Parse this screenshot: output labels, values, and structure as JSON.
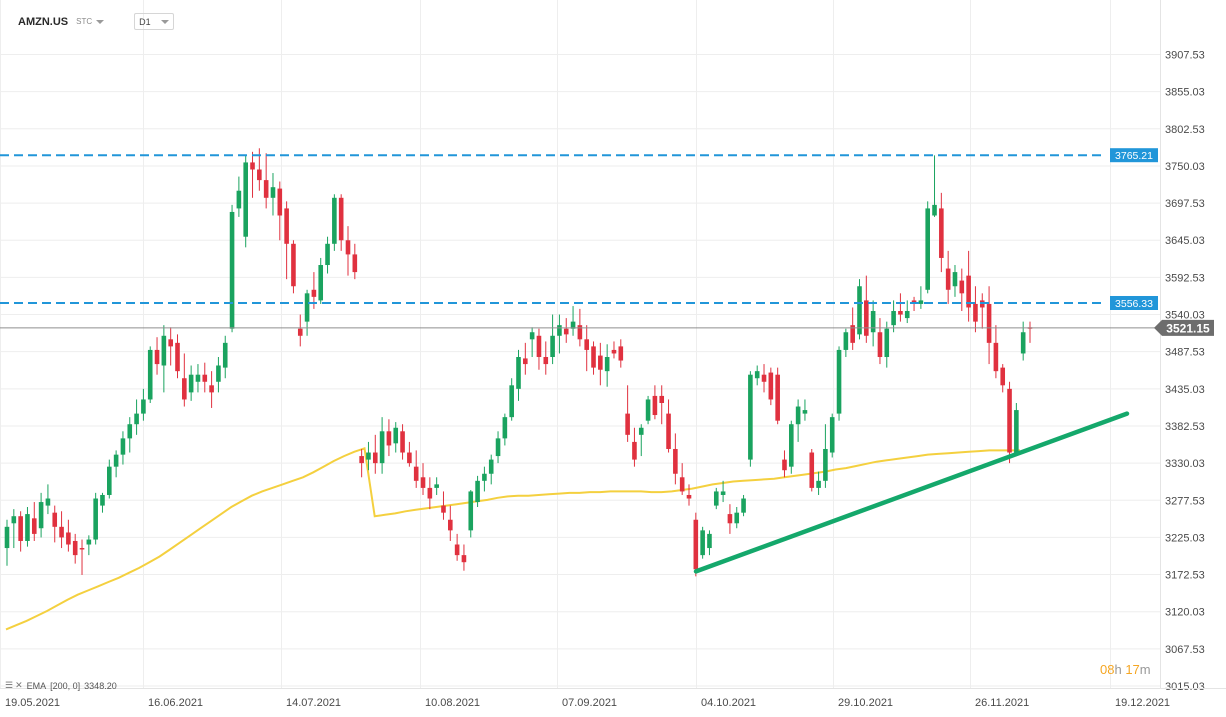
{
  "header": {
    "symbol": "AMZN.US",
    "tick_type": "STC",
    "timeframe": "D1"
  },
  "indicator": {
    "label": "EMA",
    "params": "[200, 0]",
    "value": "3348.20"
  },
  "timer": {
    "hours": "08",
    "h_unit": "h",
    "minutes": "17",
    "m_unit": "m"
  },
  "colors": {
    "up": "#1aa35f",
    "down": "#e0313f",
    "ema": "#f4d03f",
    "level": "#2196d9",
    "trend": "#14a86b",
    "current": "#6d6d6d"
  },
  "chart_data": {
    "type": "candlestick",
    "symbol": "AMZN.US",
    "timeframe": "D1",
    "ylim": [
      3015.03,
      3960.53
    ],
    "y_ticks": [
      "3907.53",
      "3855.03",
      "3802.53",
      "3750.03",
      "3697.53",
      "3645.03",
      "3592.53",
      "3540.03",
      "3487.53",
      "3435.03",
      "3382.53",
      "3330.03",
      "3277.53",
      "3225.03",
      "3172.53",
      "3120.03",
      "3067.53",
      "3015.03"
    ],
    "x_ticks": [
      "19.05.2021",
      "16.06.2021",
      "14.07.2021",
      "10.08.2021",
      "07.09.2021",
      "04.10.2021",
      "29.10.2021",
      "26.11.2021",
      "19.12.2021"
    ],
    "levels": [
      {
        "value": 3765.21,
        "label": "3765.21"
      },
      {
        "value": 3556.33,
        "label": "3556.33"
      }
    ],
    "current_price": {
      "value": 3521.15,
      "label": "3521.15"
    },
    "trendline": {
      "start": {
        "date": "2021-09-30",
        "price": 3177
      },
      "end": {
        "date": "2021-12-17",
        "price": 3400
      }
    },
    "candles": [
      [
        3210,
        3250,
        3185,
        3240
      ],
      [
        3245,
        3265,
        3210,
        3255
      ],
      [
        3255,
        3262,
        3205,
        3220
      ],
      [
        3220,
        3268,
        3212,
        3258
      ],
      [
        3252,
        3275,
        3220,
        3230
      ],
      [
        3238,
        3288,
        3225,
        3275
      ],
      [
        3270,
        3300,
        3258,
        3280
      ],
      [
        3260,
        3270,
        3218,
        3240
      ],
      [
        3240,
        3262,
        3210,
        3225
      ],
      [
        3232,
        3250,
        3205,
        3215
      ],
      [
        3220,
        3230,
        3188,
        3200
      ],
      [
        3210,
        3222,
        3172,
        3208
      ],
      [
        3215,
        3228,
        3200,
        3222
      ],
      [
        3222,
        3288,
        3215,
        3280
      ],
      [
        3270,
        3288,
        3260,
        3285
      ],
      [
        3285,
        3335,
        3280,
        3325
      ],
      [
        3325,
        3348,
        3310,
        3342
      ],
      [
        3342,
        3375,
        3328,
        3365
      ],
      [
        3365,
        3395,
        3345,
        3385
      ],
      [
        3385,
        3420,
        3370,
        3400
      ],
      [
        3400,
        3435,
        3390,
        3420
      ],
      [
        3420,
        3495,
        3415,
        3490
      ],
      [
        3490,
        3508,
        3455,
        3470
      ],
      [
        3468,
        3525,
        3430,
        3510
      ],
      [
        3505,
        3522,
        3468,
        3495
      ],
      [
        3500,
        3512,
        3450,
        3460
      ],
      [
        3450,
        3485,
        3410,
        3420
      ],
      [
        3430,
        3468,
        3418,
        3455
      ],
      [
        3445,
        3470,
        3430,
        3455
      ],
      [
        3455,
        3472,
        3430,
        3445
      ],
      [
        3440,
        3460,
        3408,
        3430
      ],
      [
        3445,
        3480,
        3430,
        3468
      ],
      [
        3465,
        3510,
        3450,
        3500
      ],
      [
        3520,
        3695,
        3515,
        3685
      ],
      [
        3690,
        3735,
        3678,
        3715
      ],
      [
        3650,
        3765,
        3635,
        3755
      ],
      [
        3755,
        3770,
        3705,
        3745
      ],
      [
        3745,
        3775,
        3715,
        3730
      ],
      [
        3730,
        3768,
        3690,
        3705
      ],
      [
        3705,
        3740,
        3680,
        3720
      ],
      [
        3718,
        3728,
        3645,
        3680
      ],
      [
        3690,
        3700,
        3590,
        3640
      ],
      [
        3640,
        3645,
        3570,
        3580
      ],
      [
        3520,
        3540,
        3495,
        3510
      ],
      [
        3530,
        3575,
        3510,
        3570
      ],
      [
        3575,
        3600,
        3548,
        3565
      ],
      [
        3560,
        3620,
        3555,
        3610
      ],
      [
        3610,
        3650,
        3598,
        3640
      ],
      [
        3640,
        3710,
        3630,
        3705
      ],
      [
        3705,
        3710,
        3630,
        3645
      ],
      [
        3645,
        3665,
        3595,
        3625
      ],
      [
        3625,
        3640,
        3590,
        3600
      ],
      [
        3340,
        3350,
        3310,
        3330
      ],
      [
        3335,
        3360,
        3320,
        3345
      ],
      [
        3345,
        3370,
        3315,
        3330
      ],
      [
        3330,
        3395,
        3315,
        3375
      ],
      [
        3375,
        3392,
        3340,
        3355
      ],
      [
        3358,
        3388,
        3345,
        3380
      ],
      [
        3375,
        3385,
        3335,
        3345
      ],
      [
        3345,
        3360,
        3325,
        3330
      ],
      [
        3325,
        3348,
        3295,
        3305
      ],
      [
        3310,
        3330,
        3285,
        3295
      ],
      [
        3295,
        3310,
        3265,
        3280
      ],
      [
        3295,
        3310,
        3285,
        3300
      ],
      [
        3270,
        3290,
        3250,
        3260
      ],
      [
        3250,
        3270,
        3220,
        3235
      ],
      [
        3215,
        3230,
        3192,
        3200
      ],
      [
        3200,
        3215,
        3178,
        3190
      ],
      [
        3235,
        3292,
        3225,
        3290
      ],
      [
        3275,
        3312,
        3268,
        3305
      ],
      [
        3305,
        3325,
        3290,
        3315
      ],
      [
        3315,
        3342,
        3300,
        3335
      ],
      [
        3340,
        3375,
        3330,
        3365
      ],
      [
        3365,
        3400,
        3355,
        3395
      ],
      [
        3395,
        3450,
        3390,
        3440
      ],
      [
        3435,
        3490,
        3418,
        3480
      ],
      [
        3478,
        3500,
        3455,
        3470
      ],
      [
        3505,
        3522,
        3480,
        3515
      ],
      [
        3510,
        3520,
        3462,
        3480
      ],
      [
        3480,
        3502,
        3455,
        3470
      ],
      [
        3480,
        3540,
        3470,
        3510
      ],
      [
        3510,
        3540,
        3485,
        3525
      ],
      [
        3520,
        3535,
        3500,
        3512
      ],
      [
        3520,
        3552,
        3510,
        3530
      ],
      [
        3525,
        3548,
        3495,
        3505
      ],
      [
        3505,
        3525,
        3460,
        3490
      ],
      [
        3495,
        3502,
        3455,
        3465
      ],
      [
        3482,
        3500,
        3440,
        3462
      ],
      [
        3460,
        3498,
        3438,
        3480
      ],
      [
        3490,
        3502,
        3478,
        3485
      ],
      [
        3495,
        3505,
        3465,
        3475
      ],
      [
        3400,
        3440,
        3360,
        3370
      ],
      [
        3360,
        3380,
        3325,
        3335
      ],
      [
        3370,
        3385,
        3340,
        3380
      ],
      [
        3390,
        3425,
        3385,
        3420
      ],
      [
        3425,
        3440,
        3392,
        3398
      ],
      [
        3425,
        3440,
        3385,
        3415
      ],
      [
        3400,
        3420,
        3345,
        3350
      ],
      [
        3350,
        3372,
        3300,
        3315
      ],
      [
        3310,
        3330,
        3285,
        3290
      ],
      [
        3285,
        3300,
        3270,
        3280
      ],
      [
        3250,
        3260,
        3170,
        3180
      ],
      [
        3200,
        3240,
        3195,
        3235
      ],
      [
        3210,
        3235,
        3200,
        3230
      ],
      [
        3270,
        3295,
        3265,
        3290
      ],
      [
        3285,
        3305,
        3275,
        3290
      ],
      [
        3258,
        3272,
        3230,
        3245
      ],
      [
        3245,
        3268,
        3238,
        3260
      ],
      [
        3260,
        3285,
        3255,
        3280
      ],
      [
        3335,
        3460,
        3325,
        3455
      ],
      [
        3450,
        3468,
        3440,
        3460
      ],
      [
        3455,
        3470,
        3430,
        3445
      ],
      [
        3458,
        3465,
        3412,
        3420
      ],
      [
        3455,
        3465,
        3385,
        3390
      ],
      [
        3335,
        3348,
        3310,
        3320
      ],
      [
        3325,
        3390,
        3315,
        3385
      ],
      [
        3385,
        3420,
        3360,
        3410
      ],
      [
        3400,
        3420,
        3390,
        3405
      ],
      [
        3345,
        3350,
        3290,
        3295
      ],
      [
        3295,
        3318,
        3285,
        3305
      ],
      [
        3305,
        3385,
        3295,
        3350
      ],
      [
        3345,
        3400,
        3338,
        3395
      ],
      [
        3400,
        3495,
        3390,
        3490
      ],
      [
        3490,
        3520,
        3480,
        3515
      ],
      [
        3525,
        3550,
        3490,
        3500
      ],
      [
        3512,
        3590,
        3505,
        3580
      ],
      [
        3560,
        3595,
        3500,
        3510
      ],
      [
        3515,
        3560,
        3495,
        3545
      ],
      [
        3515,
        3535,
        3470,
        3480
      ],
      [
        3480,
        3530,
        3465,
        3520
      ],
      [
        3525,
        3560,
        3515,
        3545
      ],
      [
        3545,
        3570,
        3530,
        3540
      ],
      [
        3535,
        3560,
        3528,
        3545
      ],
      [
        3560,
        3565,
        3545,
        3555
      ],
      [
        3555,
        3580,
        3548,
        3560
      ],
      [
        3575,
        3700,
        3570,
        3690
      ],
      [
        3680,
        3765,
        3678,
        3695
      ],
      [
        3690,
        3712,
        3600,
        3620
      ],
      [
        3605,
        3630,
        3555,
        3575
      ],
      [
        3580,
        3610,
        3565,
        3600
      ],
      [
        3588,
        3605,
        3545,
        3570
      ],
      [
        3595,
        3630,
        3530,
        3550
      ],
      [
        3555,
        3580,
        3515,
        3530
      ],
      [
        3560,
        3570,
        3520,
        3550
      ],
      [
        3555,
        3580,
        3470,
        3500
      ],
      [
        3500,
        3525,
        3450,
        3460
      ],
      [
        3465,
        3470,
        3430,
        3440
      ],
      [
        3435,
        3445,
        3330,
        3345
      ],
      [
        3345,
        3415,
        3340,
        3405
      ],
      [
        3485,
        3530,
        3475,
        3515
      ],
      [
        3522,
        3530,
        3500,
        3520
      ]
    ],
    "ema200": [
      3095,
      3101,
      3107,
      3114,
      3121,
      3129,
      3137,
      3144,
      3150,
      3156,
      3162,
      3168,
      3175,
      3182,
      3190,
      3198,
      3208,
      3218,
      3228,
      3238,
      3248,
      3258,
      3268,
      3276,
      3284,
      3290,
      3295,
      3300,
      3305,
      3310,
      3317,
      3325,
      3333,
      3340,
      3346,
      3351,
      3255,
      3257,
      3259,
      3262,
      3264,
      3266,
      3268,
      3270,
      3272,
      3274,
      3276,
      3278,
      3281,
      3283,
      3284,
      3284,
      3285,
      3286,
      3287,
      3288,
      3288,
      3289,
      3289,
      3290,
      3290,
      3290,
      3290,
      3289,
      3289,
      3290,
      3292,
      3294,
      3297,
      3300,
      3302,
      3304,
      3305,
      3306,
      3307,
      3308,
      3310,
      3312,
      3314,
      3316,
      3318,
      3321,
      3323,
      3326,
      3329,
      3332,
      3334,
      3336,
      3338,
      3340,
      3342,
      3343,
      3344,
      3345,
      3346,
      3347,
      3348,
      3348,
      3348,
      3348
    ]
  }
}
